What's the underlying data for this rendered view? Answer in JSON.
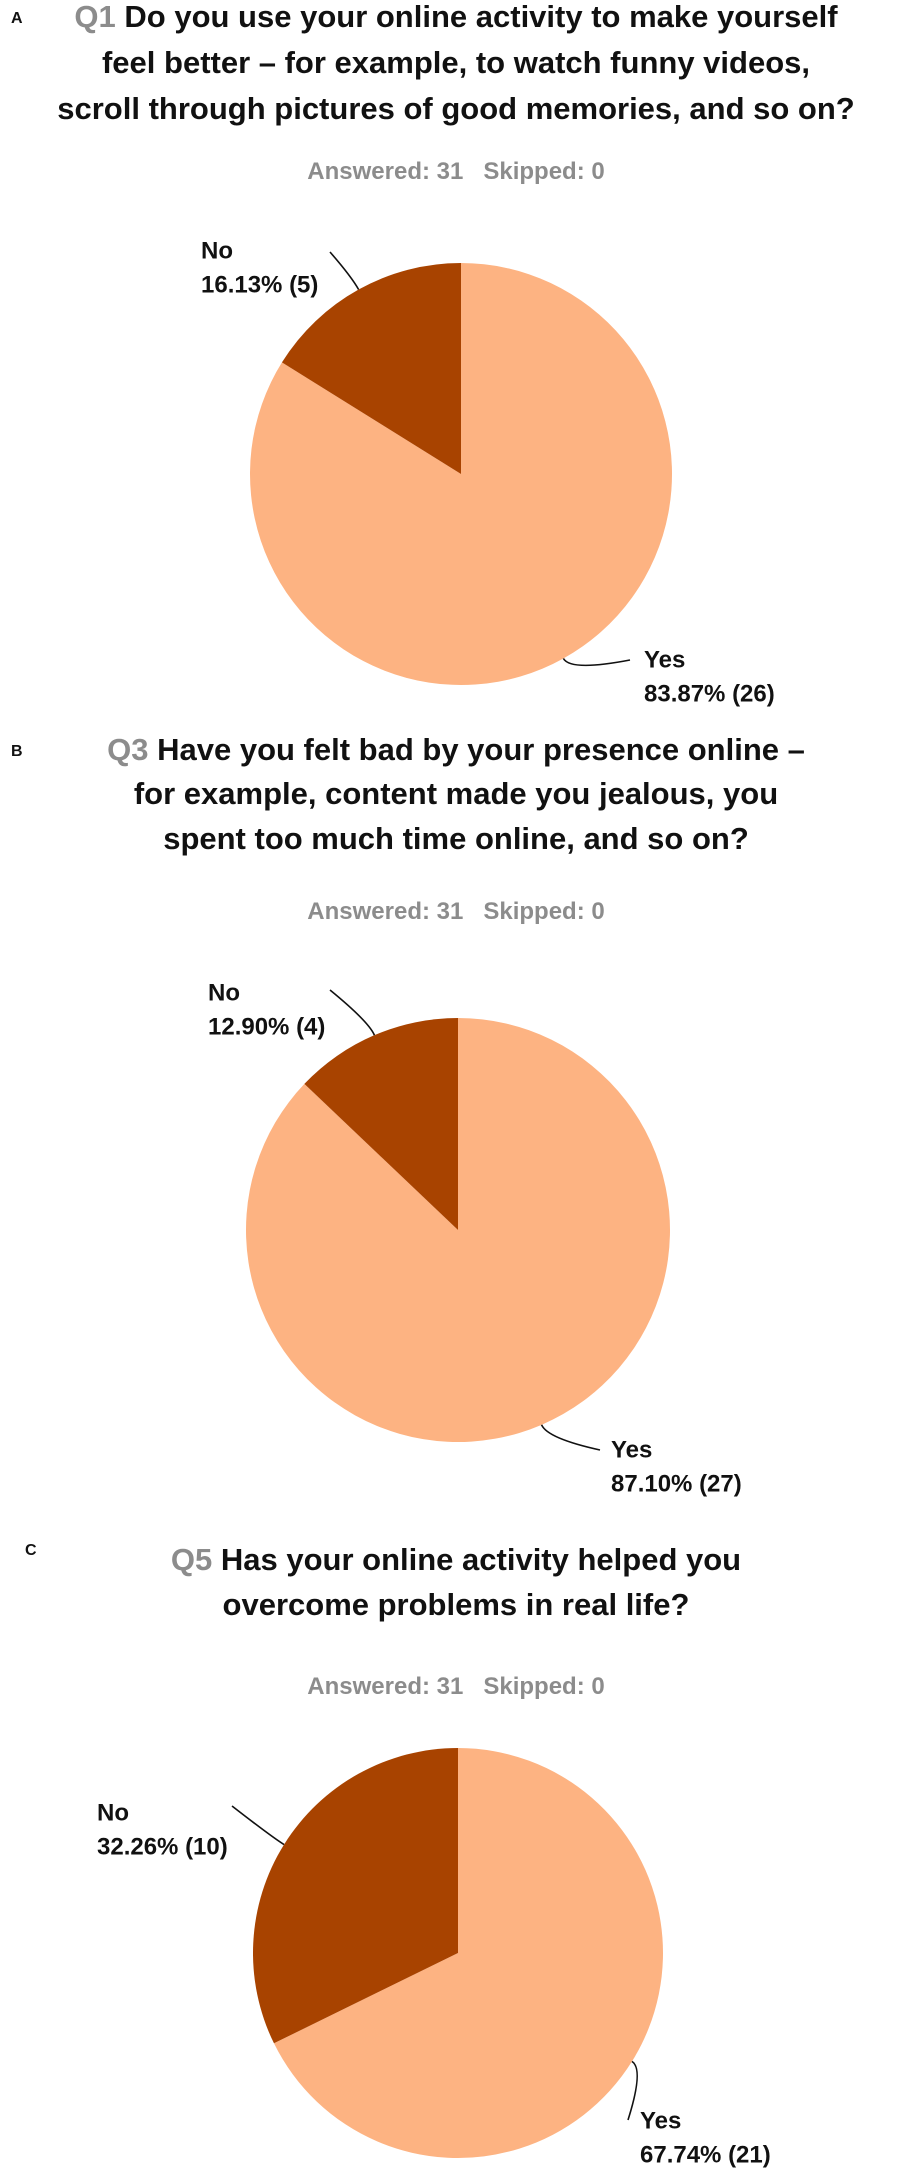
{
  "chart_data": [
    {
      "type": "pie",
      "panel": "A",
      "question": "Q1",
      "title_lines": [
        "Do you use your online activity to make yourself",
        "feel better – for example, to watch funny videos,",
        "scroll through pictures of good memories, and so on?"
      ],
      "answered": "Answered: 31",
      "skipped": "Skipped: 0",
      "categories": [
        "No",
        "Yes"
      ],
      "values": [
        16.13,
        83.87
      ],
      "value_labels": [
        "16.13% (5)",
        "83.87% (26)"
      ],
      "colors": [
        "#a84300",
        "#fdb382"
      ]
    },
    {
      "type": "pie",
      "panel": "B",
      "question": "Q3",
      "title_lines": [
        "Have you felt bad by your presence online –",
        "for example, content made you jealous, you",
        "spent too much time online, and so on?"
      ],
      "answered": "Answered: 31",
      "skipped": "Skipped: 0",
      "categories": [
        "No",
        "Yes"
      ],
      "values": [
        12.9,
        87.1
      ],
      "value_labels": [
        "12.90% (4)",
        "87.10% (27)"
      ],
      "colors": [
        "#a84300",
        "#fdb382"
      ]
    },
    {
      "type": "pie",
      "panel": "C",
      "question": "Q5",
      "title_lines": [
        "Has your online activity helped you",
        "overcome problems in real life?"
      ],
      "answered": "Answered: 31",
      "skipped": "Skipped: 0",
      "categories": [
        "No",
        "Yes"
      ],
      "values": [
        32.26,
        67.74
      ],
      "value_labels": [
        "32.26% (10)",
        "67.74% (21)"
      ],
      "colors": [
        "#a84300",
        "#fdb382"
      ]
    }
  ]
}
